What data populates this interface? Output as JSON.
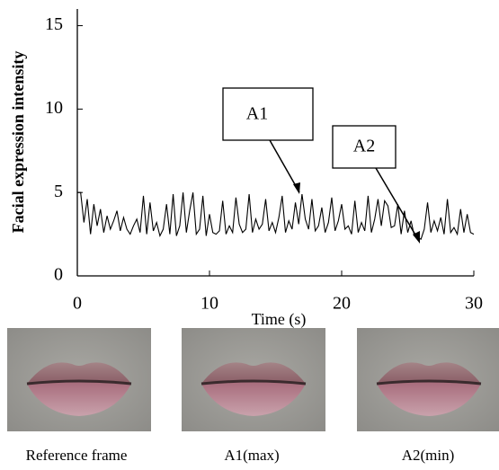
{
  "chart_data": {
    "type": "line",
    "y_label": "Facial expression intensity",
    "x_label": "Time (s)",
    "annotations": [
      {
        "text": "A1"
      },
      {
        "text": "A2"
      }
    ],
    "xlim": [
      0,
      30
    ],
    "xticks": [
      0,
      10,
      20,
      30
    ],
    "ylim": [
      0,
      16
    ],
    "yticks": [
      0,
      5,
      10,
      15
    ],
    "x": [
      0,
      0.25,
      0.5,
      0.75,
      1,
      1.25,
      1.5,
      1.75,
      2,
      2.25,
      2.5,
      2.75,
      3,
      3.25,
      3.5,
      3.75,
      4,
      4.25,
      4.5,
      4.75,
      5,
      5.25,
      5.5,
      5.75,
      6,
      6.25,
      6.5,
      6.75,
      7,
      7.25,
      7.5,
      7.75,
      8,
      8.25,
      8.5,
      8.75,
      9,
      9.25,
      9.5,
      9.75,
      10,
      10.25,
      10.5,
      10.75,
      11,
      11.25,
      11.5,
      11.75,
      12,
      12.25,
      12.5,
      12.75,
      13,
      13.25,
      13.5,
      13.75,
      14,
      14.25,
      14.5,
      14.75,
      15,
      15.25,
      15.5,
      15.75,
      16,
      16.25,
      16.5,
      16.75,
      17,
      17.25,
      17.5,
      17.75,
      18,
      18.25,
      18.5,
      18.75,
      19,
      19.25,
      19.5,
      19.75,
      20,
      20.25,
      20.5,
      20.75,
      21,
      21.25,
      21.5,
      21.75,
      22,
      22.25,
      22.5,
      22.75,
      23,
      23.25,
      23.5,
      23.75,
      24,
      24.25,
      24.5,
      24.75,
      25,
      25.25,
      25.5,
      25.75,
      26,
      26.25,
      26.5,
      26.75,
      27,
      27.25,
      27.5,
      27.75,
      28,
      28.25,
      28.5,
      28.75,
      29,
      29.25,
      29.5,
      29.75,
      30
    ],
    "series": [
      {
        "color": "#000000",
        "values": [
          5.0,
          5.0,
          3.2,
          4.6,
          2.5,
          4.3,
          3.0,
          4.0,
          2.6,
          3.6,
          2.8,
          3.3,
          3.9,
          2.7,
          3.5,
          2.8,
          2.5,
          3.0,
          3.4,
          2.6,
          4.8,
          2.5,
          4.4,
          2.7,
          3.2,
          2.4,
          2.8,
          4.3,
          2.5,
          4.9,
          2.4,
          3.0,
          5.0,
          2.6,
          3.9,
          5.0,
          2.5,
          2.8,
          4.8,
          2.4,
          3.7,
          2.6,
          2.5,
          2.7,
          4.5,
          2.5,
          3.0,
          2.6,
          4.7,
          3.1,
          2.6,
          2.8,
          4.9,
          2.6,
          3.4,
          2.8,
          3.1,
          4.6,
          2.7,
          3.2,
          2.6,
          3.5,
          4.8,
          2.6,
          3.3,
          2.8,
          4.4,
          3.1,
          4.9,
          3.4,
          2.8,
          4.6,
          2.7,
          3.0,
          4.1,
          2.6,
          3.2,
          4.7,
          2.7,
          3.3,
          4.3,
          2.8,
          3.0,
          2.5,
          4.5,
          2.6,
          3.2,
          2.7,
          4.8,
          2.6,
          3.4,
          4.6,
          3.0,
          4.5,
          4.2,
          2.9,
          3.0,
          4.3,
          2.5,
          3.9,
          2.6,
          3.3,
          2.4,
          2.3,
          2.2,
          2.8,
          4.4,
          2.6,
          3.3,
          2.7,
          3.5,
          2.5,
          4.6,
          2.6,
          2.9,
          2.5,
          4.0,
          2.6,
          3.7,
          2.6,
          2.5
        ]
      }
    ]
  },
  "images": [
    {
      "caption": "Reference frame"
    },
    {
      "caption": "A1(max)"
    },
    {
      "caption": "A2(min)"
    }
  ]
}
